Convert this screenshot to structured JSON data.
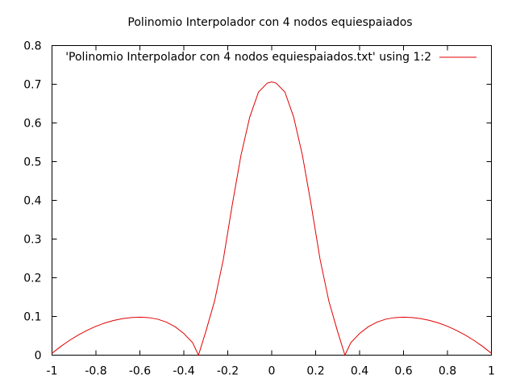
{
  "chart_data": {
    "type": "line",
    "title": "Polinomio Interpolador con 4 nodos equiespaiados",
    "xlabel": "",
    "ylabel": "",
    "xlim": [
      -1,
      1
    ],
    "ylim": [
      0,
      0.8
    ],
    "xticks": [
      "-1",
      "-0.8",
      "-0.6",
      "-0.4",
      "-0.2",
      "0",
      "0.2",
      "0.4",
      "0.6",
      "0.8",
      "1"
    ],
    "yticks": [
      "0",
      "0.1",
      "0.2",
      "0.3",
      "0.4",
      "0.5",
      "0.6",
      "0.7",
      "0.8"
    ],
    "grid": false,
    "legend_position": "top-right",
    "series_color": "#e00000",
    "series": [
      {
        "name": "'Polinomio Interpolador con 4 nodos equiespaiados.txt' using 1:2",
        "x": [
          -1,
          -0.96,
          -0.92,
          -0.88,
          -0.84,
          -0.8,
          -0.76,
          -0.72,
          -0.68,
          -0.64,
          -0.6,
          -0.56,
          -0.52,
          -0.48,
          -0.44,
          -0.4,
          -0.36,
          -0.3333,
          -0.3,
          -0.26,
          -0.22,
          -0.18,
          -0.14,
          -0.1,
          -0.06,
          -0.02,
          0,
          0.02,
          0.06,
          0.1,
          0.14,
          0.18,
          0.22,
          0.26,
          0.3,
          0.3333,
          0.36,
          0.4,
          0.44,
          0.48,
          0.52,
          0.56,
          0.6,
          0.64,
          0.68,
          0.72,
          0.76,
          0.8,
          0.84,
          0.88,
          0.92,
          0.96,
          1
        ],
        "y": [
          0.0048,
          0.0225,
          0.0383,
          0.0522,
          0.0643,
          0.0746,
          0.083,
          0.0896,
          0.0943,
          0.0971,
          0.0981,
          0.097,
          0.0931,
          0.0856,
          0.0735,
          0.056,
          0.0322,
          0.0,
          0.0608,
          0.14,
          0.248,
          0.387,
          0.516,
          0.615,
          0.68,
          0.703,
          0.706,
          0.703,
          0.68,
          0.615,
          0.516,
          0.387,
          0.248,
          0.14,
          0.0608,
          0.0,
          0.0322,
          0.056,
          0.0735,
          0.0856,
          0.0931,
          0.097,
          0.0981,
          0.0971,
          0.0943,
          0.0896,
          0.083,
          0.0746,
          0.0643,
          0.0522,
          0.0383,
          0.0225,
          0.0048
        ]
      }
    ]
  }
}
